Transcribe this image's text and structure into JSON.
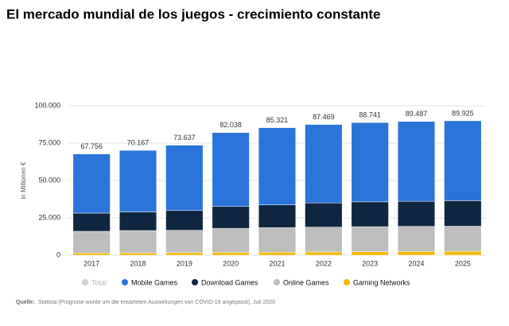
{
  "chart_data": {
    "type": "stacked_bar",
    "title": "El mercado mundial de los juegos - crecimiento constante",
    "y_label": "in Millionen €",
    "categories": [
      "2017",
      "2018",
      "2019",
      "2020",
      "2021",
      "2022",
      "2023",
      "2024",
      "2025"
    ],
    "total": {
      "name": "Total",
      "color": "#d0d0d0",
      "values": [
        67756,
        70167,
        73637,
        82038,
        85321,
        87469,
        88741,
        89487,
        89925
      ],
      "value_labels": [
        "67.756",
        "70.167",
        "73.637",
        "82.038",
        "85.321",
        "87.469",
        "88.741",
        "89.487",
        "89.925"
      ]
    },
    "series": [
      {
        "name": "Mobile Games",
        "color": "#2b74d9",
        "values": [
          39556,
          41167,
          43737,
          49438,
          51621,
          52469,
          53041,
          53387,
          53425
        ]
      },
      {
        "name": "Download Games",
        "color": "#0f2641",
        "values": [
          12200,
          12500,
          13200,
          14600,
          15200,
          16200,
          16600,
          16800,
          17100
        ]
      },
      {
        "name": "Online Games",
        "color": "#bdbdbd",
        "values": [
          14500,
          14900,
          15000,
          16100,
          16500,
          16600,
          16700,
          16800,
          16800
        ]
      },
      {
        "name": "Gaming Networks",
        "color": "#f2b90c",
        "values": [
          1500,
          1600,
          1700,
          1900,
          2000,
          2200,
          2400,
          2500,
          2600
        ]
      }
    ],
    "ylim": [
      0,
      100000
    ],
    "yticks": [
      0,
      {
        "value": 25000,
        "label": "25.000"
      },
      {
        "value": 50000,
        "label": "50.000"
      },
      {
        "value": 75000,
        "label": "75.000"
      },
      {
        "value": 100000,
        "label": "100.000"
      }
    ],
    "grid": true,
    "source_label": "Quelle:",
    "source": "Statista (Prognose wurde um die erwarteten Auswirkungen von COVID-19 angepasst), Juli 2020"
  }
}
